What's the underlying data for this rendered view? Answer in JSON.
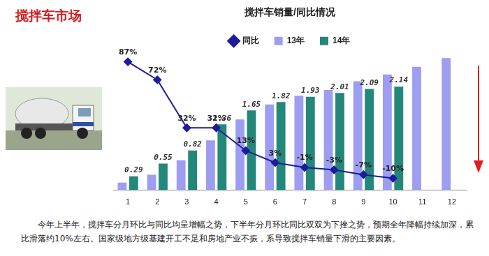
{
  "header": "搅拌车市场",
  "note": "今年上半年，搅拌车分月环比与同比均呈增幅之势，下半年分月环比同比双双为下挫之势，预期全年降幅持续加深，累比滑落约10%左右。国家级地方级基建开工不足和房地产业不振，系导致搅拌车销量下滑的主要因素。",
  "chart_data": {
    "type": "bar",
    "title": "搅拌车销量/同比情况",
    "categories": [
      "1",
      "2",
      "3",
      "4",
      "5",
      "6",
      "7",
      "8",
      "9",
      "10",
      "11",
      "12"
    ],
    "series": [
      {
        "name": "13年",
        "type": "bar",
        "color": "#9d9df2",
        "data_labels": false,
        "values": [
          0.16,
          0.32,
          0.62,
          1.03,
          1.46,
          1.77,
          1.95,
          2.07,
          2.25,
          2.39,
          2.55,
          2.73
        ]
      },
      {
        "name": "14年",
        "type": "bar",
        "color": "#23877a",
        "data_labels": true,
        "values": [
          0.29,
          0.55,
          0.82,
          1.36,
          1.65,
          1.82,
          1.93,
          2.01,
          2.09,
          2.14,
          null,
          null
        ]
      },
      {
        "name": "同比",
        "type": "line",
        "axis": "y2",
        "color": "#1c1c9c",
        "marker": "diamond",
        "line_style": "solid",
        "data_labels": true,
        "values": [
          87,
          72,
          32,
          32,
          13,
          3,
          -1,
          -3,
          -7,
          -10,
          null,
          null
        ],
        "value_labels": [
          "87%",
          "72%",
          "32%",
          "32%",
          "13%",
          "3%",
          "-1%",
          "-3%",
          "-7%",
          "-10%",
          null,
          null
        ]
      }
    ],
    "ylim": [
      0,
      2.85
    ],
    "y2lim": [
      -20,
      95
    ],
    "grid": false,
    "legend": "top",
    "tick_labels": "x"
  }
}
